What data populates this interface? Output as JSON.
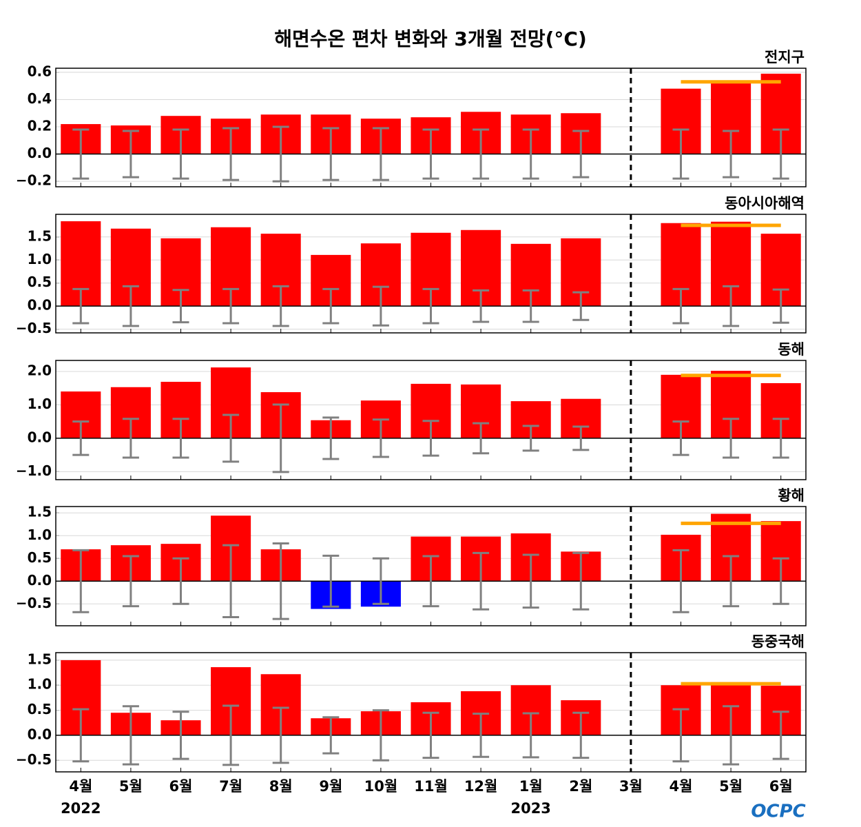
{
  "title": "해면수온 편차 변화와 3개월 전망(°C)",
  "categories": [
    "4월",
    "5월",
    "6월",
    "7월",
    "8월",
    "9월",
    "10월",
    "11월",
    "12월",
    "1월",
    "2월",
    "3월",
    "4월",
    "5월",
    "6월"
  ],
  "years": [
    "2022",
    null,
    null,
    null,
    null,
    null,
    null,
    null,
    null,
    "2023",
    null,
    null,
    null,
    null,
    null
  ],
  "logo": "OCPC",
  "chart_data": [
    {
      "type": "bar",
      "title": "전지구",
      "values": [
        0.22,
        0.21,
        0.28,
        0.26,
        0.29,
        0.29,
        0.26,
        0.27,
        0.31,
        0.29,
        0.3,
        null,
        0.48,
        0.54,
        0.59
      ],
      "errors": [
        0.18,
        0.17,
        0.18,
        0.19,
        0.2,
        0.19,
        0.19,
        0.18,
        0.18,
        0.18,
        0.17,
        null,
        0.18,
        0.17,
        0.18
      ],
      "forecast_mean": 0.53,
      "ylim": [
        -0.24,
        0.63
      ],
      "yticks": [
        {
          "value": -0.2,
          "label": "−0.2"
        },
        {
          "value": 0,
          "label": "0.0"
        },
        0.2,
        0.4,
        0.6
      ],
      "color": "#ff0000",
      "negative_color": "#0000ff",
      "error_color": "#808080",
      "forecast_color": "#ffa500",
      "grid": true
    },
    {
      "type": "bar",
      "title": "동아시아해역",
      "values": [
        1.84,
        1.68,
        1.47,
        1.71,
        1.57,
        1.11,
        1.36,
        1.59,
        1.65,
        1.35,
        1.47,
        null,
        1.8,
        1.83,
        1.57
      ],
      "errors": [
        0.37,
        0.43,
        0.35,
        0.37,
        0.43,
        0.37,
        0.42,
        0.37,
        0.34,
        0.34,
        0.3,
        null,
        0.37,
        0.43,
        0.36
      ],
      "forecast_mean": 1.75,
      "ylim": [
        -0.58,
        1.99
      ],
      "yticks": [
        {
          "value": -0.5,
          "label": "−0.5"
        },
        {
          "value": 0,
          "label": "0.0"
        },
        0.5,
        {
          "value": 1,
          "label": "1.0"
        },
        1.5
      ],
      "color": "#ff0000",
      "negative_color": "#0000ff",
      "error_color": "#808080",
      "forecast_color": "#ffa500",
      "grid": true
    },
    {
      "type": "bar",
      "title": "동해",
      "values": [
        1.4,
        1.53,
        1.69,
        2.12,
        1.38,
        0.54,
        1.13,
        1.63,
        1.61,
        1.11,
        1.18,
        null,
        1.9,
        2.02,
        1.65
      ],
      "errors": [
        0.5,
        0.58,
        0.58,
        0.7,
        1.01,
        0.62,
        0.56,
        0.52,
        0.45,
        0.37,
        0.35,
        null,
        0.5,
        0.58,
        0.58
      ],
      "forecast_mean": 1.88,
      "ylim": [
        -1.24,
        2.33
      ],
      "yticks": [
        {
          "value": -1,
          "label": "−1.0"
        },
        {
          "value": 0,
          "label": "0.0"
        },
        {
          "value": 1,
          "label": "1.0"
        },
        {
          "value": 2,
          "label": "2.0"
        }
      ],
      "color": "#ff0000",
      "negative_color": "#0000ff",
      "error_color": "#808080",
      "forecast_color": "#ffa500",
      "grid": true
    },
    {
      "type": "bar",
      "title": "황해",
      "values": [
        0.7,
        0.79,
        0.82,
        1.44,
        0.7,
        -0.61,
        -0.56,
        0.98,
        0.98,
        1.05,
        0.65,
        null,
        1.02,
        1.48,
        1.32
      ],
      "errors": [
        0.68,
        0.55,
        0.5,
        0.79,
        0.83,
        0.56,
        0.5,
        0.55,
        0.62,
        0.58,
        0.62,
        null,
        0.68,
        0.55,
        0.5
      ],
      "forecast_mean": 1.27,
      "ylim": [
        -0.98,
        1.64
      ],
      "yticks": [
        {
          "value": -0.5,
          "label": "−0.5"
        },
        {
          "value": 0,
          "label": "0.0"
        },
        0.5,
        {
          "value": 1,
          "label": "1.0"
        },
        1.5
      ],
      "color": "#ff0000",
      "negative_color": "#0000ff",
      "error_color": "#808080",
      "forecast_color": "#ffa500",
      "grid": true
    },
    {
      "type": "bar",
      "title": "동중국해",
      "values": [
        1.5,
        0.45,
        0.3,
        1.36,
        1.22,
        0.34,
        0.48,
        0.66,
        0.88,
        1.0,
        0.7,
        null,
        1.0,
        1.06,
        0.99
      ],
      "errors": [
        0.52,
        0.58,
        0.47,
        0.59,
        0.55,
        0.36,
        0.5,
        0.45,
        0.43,
        0.44,
        0.45,
        null,
        0.52,
        0.58,
        0.47
      ],
      "forecast_mean": 1.03,
      "ylim": [
        -0.73,
        1.65
      ],
      "yticks": [
        {
          "value": -0.5,
          "label": "−0.5"
        },
        {
          "value": 0,
          "label": "0.0"
        },
        0.5,
        {
          "value": 1,
          "label": "1.0"
        },
        1.5
      ],
      "color": "#ff0000",
      "negative_color": "#0000ff",
      "error_color": "#808080",
      "forecast_color": "#ffa500",
      "grid": true
    }
  ]
}
